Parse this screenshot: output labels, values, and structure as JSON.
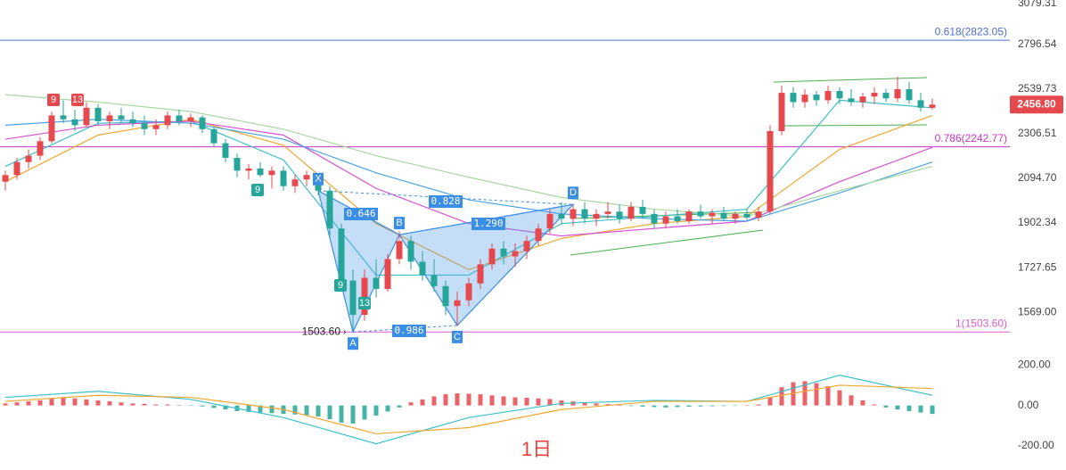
{
  "chart_data": {
    "type": "candlestick",
    "x_label": "1日",
    "log_scale": true,
    "ylim": [
      1439,
      3079.31
    ],
    "yticks": [
      3079.31,
      2796.54,
      2539.73,
      2306.51,
      {
        "value": 2094.7,
        "label": "2094.70"
      },
      1902.34,
      1727.65,
      {
        "value": 1569,
        "label": "1569.00"
      }
    ],
    "up_color": "#e5484d",
    "down_color": "#26a69a",
    "ohlc": [
      [
        2080,
        2130,
        2040,
        2110
      ],
      [
        2110,
        2190,
        2090,
        2170
      ],
      [
        2170,
        2230,
        2140,
        2200
      ],
      [
        2200,
        2290,
        2180,
        2270
      ],
      [
        2270,
        2420,
        2260,
        2400
      ],
      [
        2400,
        2480,
        2360,
        2380
      ],
      [
        2380,
        2430,
        2320,
        2350
      ],
      [
        2350,
        2470,
        2340,
        2440
      ],
      [
        2440,
        2460,
        2350,
        2370
      ],
      [
        2370,
        2420,
        2330,
        2400
      ],
      [
        2400,
        2440,
        2360,
        2380
      ],
      [
        2380,
        2420,
        2340,
        2360
      ],
      [
        2360,
        2400,
        2300,
        2330
      ],
      [
        2330,
        2380,
        2300,
        2350
      ],
      [
        2350,
        2420,
        2330,
        2400
      ],
      [
        2400,
        2430,
        2350,
        2370
      ],
      [
        2370,
        2410,
        2340,
        2390
      ],
      [
        2390,
        2400,
        2310,
        2330
      ],
      [
        2330,
        2340,
        2240,
        2260
      ],
      [
        2260,
        2280,
        2170,
        2190
      ],
      [
        2190,
        2210,
        2100,
        2130
      ],
      [
        2130,
        2160,
        2090,
        2140
      ],
      [
        2140,
        2170,
        2100,
        2110
      ],
      [
        2110,
        2150,
        2050,
        2130
      ],
      [
        2130,
        2150,
        2040,
        2060
      ],
      [
        2060,
        2110,
        2030,
        2090
      ],
      [
        2090,
        2130,
        2060,
        2110
      ],
      [
        2110,
        2120,
        2020,
        2040
      ],
      [
        2040,
        2060,
        1840,
        1880
      ],
      [
        1880,
        1900,
        1640,
        1680
      ],
      [
        1680,
        1720,
        1503.6,
        1560
      ],
      [
        1560,
        1720,
        1540,
        1690
      ],
      [
        1690,
        1760,
        1620,
        1650
      ],
      [
        1650,
        1780,
        1640,
        1760
      ],
      [
        1760,
        1870,
        1740,
        1830
      ],
      [
        1830,
        1850,
        1720,
        1750
      ],
      [
        1750,
        1790,
        1680,
        1700
      ],
      [
        1700,
        1760,
        1640,
        1660
      ],
      [
        1660,
        1680,
        1560,
        1590
      ],
      [
        1590,
        1640,
        1525,
        1610
      ],
      [
        1610,
        1690,
        1590,
        1670
      ],
      [
        1670,
        1760,
        1650,
        1740
      ],
      [
        1740,
        1820,
        1720,
        1800
      ],
      [
        1800,
        1830,
        1740,
        1770
      ],
      [
        1770,
        1820,
        1730,
        1790
      ],
      [
        1790,
        1850,
        1760,
        1830
      ],
      [
        1830,
        1900,
        1810,
        1880
      ],
      [
        1880,
        1960,
        1860,
        1940
      ],
      [
        1940,
        1990,
        1900,
        1920
      ],
      [
        1920,
        1980,
        1890,
        1960
      ],
      [
        1960,
        1990,
        1900,
        1920
      ],
      [
        1920,
        1960,
        1890,
        1940
      ],
      [
        1940,
        1990,
        1920,
        1950
      ],
      [
        1950,
        1980,
        1900,
        1920
      ],
      [
        1920,
        1990,
        1910,
        1970
      ],
      [
        1970,
        2000,
        1920,
        1940
      ],
      [
        1940,
        1960,
        1880,
        1900
      ],
      [
        1900,
        1950,
        1880,
        1930
      ],
      [
        1930,
        1960,
        1900,
        1910
      ],
      [
        1910,
        1960,
        1900,
        1950
      ],
      [
        1950,
        1980,
        1920,
        1930
      ],
      [
        1930,
        1960,
        1900,
        1945
      ],
      [
        1945,
        1970,
        1910,
        1920
      ],
      [
        1920,
        1950,
        1900,
        1940
      ],
      [
        1940,
        1960,
        1910,
        1925
      ],
      [
        1925,
        1970,
        1910,
        1950
      ],
      [
        1950,
        2350,
        1940,
        2320
      ],
      [
        2320,
        2560,
        2300,
        2520
      ],
      [
        2520,
        2550,
        2440,
        2470
      ],
      [
        2470,
        2540,
        2440,
        2510
      ],
      [
        2510,
        2530,
        2450,
        2480
      ],
      [
        2480,
        2560,
        2460,
        2530
      ],
      [
        2530,
        2550,
        2460,
        2490
      ],
      [
        2490,
        2540,
        2450,
        2470
      ],
      [
        2470,
        2520,
        2440,
        2500
      ],
      [
        2500,
        2550,
        2460,
        2520
      ],
      [
        2520,
        2540,
        2470,
        2490
      ],
      [
        2490,
        2610,
        2470,
        2540
      ],
      [
        2540,
        2580,
        2460,
        2480
      ],
      [
        2480,
        2520,
        2420,
        2440
      ],
      [
        2440,
        2490,
        2430,
        2456.8
      ]
    ],
    "moving_averages": [
      {
        "color": "#3cc0c8",
        "x": [
          0,
          8,
          16,
          24,
          32,
          40,
          48,
          56,
          64,
          72,
          80
        ],
        "values": [
          2150,
          2360,
          2370,
          2180,
          1700,
          1700,
          1900,
          1930,
          1960,
          2480,
          2440
        ]
      },
      {
        "color": "#f0a830",
        "x": [
          0,
          8,
          16,
          24,
          32,
          40,
          48,
          56,
          64,
          72,
          80
        ],
        "values": [
          2080,
          2300,
          2380,
          2250,
          1900,
          1720,
          1840,
          1900,
          1930,
          2230,
          2400
        ]
      },
      {
        "color": "#d64fd0",
        "x": [
          0,
          8,
          16,
          24,
          32,
          40,
          48,
          56,
          64,
          72,
          80
        ],
        "values": [
          2280,
          2350,
          2370,
          2300,
          2050,
          1900,
          1850,
          1880,
          1910,
          2080,
          2240
        ]
      },
      {
        "color": "#4fa3e0",
        "x": [
          0,
          8,
          16,
          24,
          32,
          40,
          48,
          56,
          64,
          72,
          80
        ],
        "values": [
          2350,
          2380,
          2360,
          2280,
          2120,
          2000,
          1940,
          1920,
          1910,
          2030,
          2170
        ]
      },
      {
        "color": "#a8d8a0",
        "x": [
          0,
          8,
          16,
          24,
          32,
          40,
          48,
          56,
          64,
          72,
          80
        ],
        "values": [
          2510,
          2470,
          2420,
          2330,
          2200,
          2100,
          2010,
          1960,
          1930,
          2040,
          2150
        ]
      }
    ],
    "fib_levels": [
      {
        "label": "0.618(2823.05)",
        "value": 2823.05,
        "color": "#4a6fd0"
      },
      {
        "label": "0.786(2242.77)",
        "value": 2242.77,
        "color": "#cc33cc"
      },
      {
        "label": "1(1503.60)",
        "value": 1503.6,
        "color": "#e05ad0"
      }
    ],
    "last_price": {
      "value": 2456.8,
      "label": "2456.80"
    },
    "pattern": {
      "color": "#3a8ee6",
      "points": [
        {
          "label": "X",
          "x": 27,
          "y": 2040
        },
        {
          "label": "A",
          "x": 30,
          "y": 1503.6
        },
        {
          "label": "B",
          "x": 34,
          "y": 1855
        },
        {
          "label": "C",
          "x": 39,
          "y": 1525
        },
        {
          "label": "D",
          "x": 49,
          "y": 1980
        }
      ],
      "ratios": [
        "0.646",
        "0.828",
        "1.290",
        "0.986"
      ],
      "low_label": {
        "value": 1503.6,
        "label": "1503.60"
      }
    },
    "sequence_labels": [
      "9",
      "13",
      "9",
      "9",
      "13"
    ],
    "macd": {
      "ylim": [
        -280,
        250
      ],
      "yticks": [
        {
          "value": 200,
          "label": "200.00"
        },
        {
          "value": 0,
          "label": "0.00"
        },
        {
          "value": -200,
          "label": "-200.00"
        }
      ],
      "histogram": [
        10,
        15,
        20,
        25,
        35,
        40,
        35,
        30,
        25,
        20,
        15,
        10,
        8,
        5,
        5,
        2,
        -2,
        -5,
        -12,
        -20,
        -28,
        -32,
        -35,
        -38,
        -42,
        -45,
        -48,
        -55,
        -68,
        -85,
        -90,
        -70,
        -50,
        -30,
        -10,
        15,
        30,
        45,
        55,
        60,
        58,
        55,
        50,
        45,
        40,
        38,
        35,
        32,
        25,
        20,
        15,
        10,
        6,
        3,
        -3,
        -6,
        -8,
        -10,
        -8,
        -6,
        -5,
        -4,
        -3,
        -2,
        0,
        5,
        40,
        90,
        115,
        120,
        110,
        95,
        75,
        50,
        25,
        5,
        -10,
        -20,
        -28,
        -35,
        -42
      ],
      "lines": [
        {
          "color": "#3cc0c8",
          "x": [
            0,
            8,
            16,
            24,
            32,
            40,
            48,
            56,
            64,
            72,
            80
          ],
          "values": [
            40,
            70,
            30,
            -60,
            -190,
            -60,
            10,
            25,
            20,
            150,
            50
          ]
        },
        {
          "color": "#f0a830",
          "x": [
            0,
            8,
            16,
            24,
            32,
            40,
            48,
            56,
            64,
            72,
            80
          ],
          "values": [
            20,
            50,
            40,
            -20,
            -140,
            -110,
            -20,
            20,
            20,
            100,
            84
          ]
        }
      ]
    }
  }
}
